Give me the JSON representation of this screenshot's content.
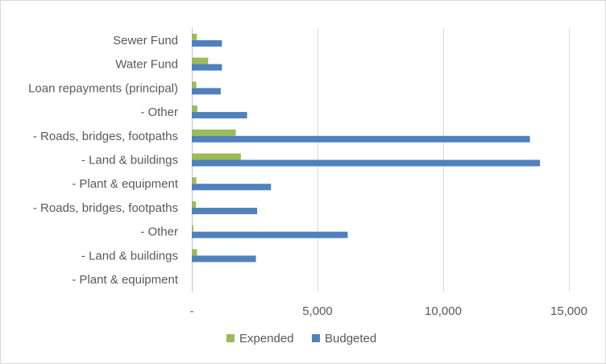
{
  "chart_data": {
    "type": "bar",
    "orientation": "horizontal",
    "categories": [
      "Sewer Fund",
      "Water Fund",
      "Loan repayments (principal)",
      "- Other",
      "- Roads, bridges, footpaths",
      "- Land & buildings",
      "- Plant & equipment",
      "- Roads, bridges, footpaths",
      "- Other",
      "- Land & buildings",
      "- Plant & equipment"
    ],
    "series": [
      {
        "name": "Expended",
        "color": "#9bbb59",
        "values": [
          200,
          650,
          180,
          220,
          1750,
          1950,
          180,
          160,
          60,
          210,
          0
        ]
      },
      {
        "name": "Budgeted",
        "color": "#4f81bd",
        "values": [
          1200,
          1200,
          1150,
          2200,
          13450,
          13850,
          3150,
          2600,
          6200,
          2550,
          0
        ]
      }
    ],
    "xlim": [
      0,
      15000
    ],
    "xticks": [
      0,
      5000,
      10000,
      15000
    ],
    "xtick_labels": [
      "-",
      "5,000",
      "10,000",
      "15,000"
    ],
    "grid": "vertical",
    "legend_position": "bottom"
  }
}
